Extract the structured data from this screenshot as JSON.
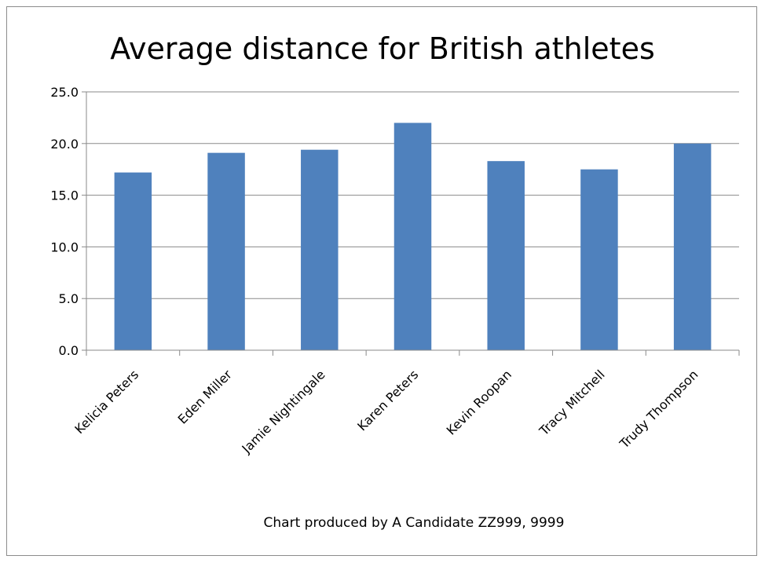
{
  "chart_data": {
    "type": "bar",
    "title": "Average distance for British athletes",
    "caption": "Chart produced by A Candidate  ZZ999, 9999",
    "categories": [
      "Kelicia Peters",
      "Eden Miller",
      "Jamie Nightingale",
      "Karen Peters",
      "Kevin Roopan",
      "Tracy Mitchell",
      "Trudy Thompson"
    ],
    "values": [
      17.2,
      19.1,
      19.4,
      22.0,
      18.3,
      17.5,
      20.0
    ],
    "ylim": [
      0,
      25
    ],
    "yticks": [
      "0.0",
      "5.0",
      "10.0",
      "15.0",
      "20.0",
      "25.0"
    ],
    "grid": true,
    "bar_color": "#4f81bd",
    "xlabel": "",
    "ylabel": ""
  }
}
